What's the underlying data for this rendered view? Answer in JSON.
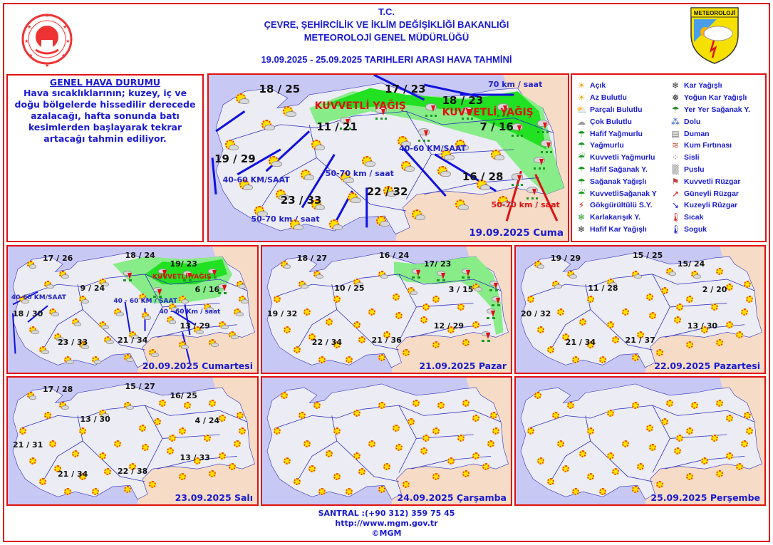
{
  "header": {
    "line1": "T.C.",
    "line2": "ÇEVRE, ŞEHİRCİLİK VE İKLİM DEĞİŞİKLİĞİ BAKANLIĞI",
    "line3": "METEOROLOJİ  GENEL  MÜDÜRLÜĞÜ",
    "dates": "19.09.2025  -  25.09.2025   TARIHLERI  ARASI  HAVA  TAHMİNİ",
    "logo_right_text": "METEOROLOJİ"
  },
  "general": {
    "title": "GENEL HAVA DURUMU",
    "text": "Hava sıcaklıklarının; kuzey, iç ve doğu bölgelerde hissedilir derecede azalacağı, hafta sonunda batı kesimlerden başlayarak tekrar artacağı tahmin ediliyor."
  },
  "legend": [
    {
      "icon": "sun-icon",
      "label": "Açık"
    },
    {
      "icon": "few-clouds-icon",
      "label": "Az Bulutlu"
    },
    {
      "icon": "partly-cloudy-icon",
      "label": "Parçalı Bulutlu"
    },
    {
      "icon": "cloudy-icon",
      "label": "Çok Bulutlu"
    },
    {
      "icon": "light-rain-icon",
      "label": "Hafif Yağmurlu"
    },
    {
      "icon": "rain-icon",
      "label": "Yağmurlu"
    },
    {
      "icon": "heavy-rain-icon",
      "label": "Kuvvetli Yağmurlu"
    },
    {
      "icon": "light-shower-icon",
      "label": "Hafif Sağanak Y."
    },
    {
      "icon": "shower-icon",
      "label": "Sağanak Yağışlı"
    },
    {
      "icon": "heavy-shower-icon",
      "label": "KuvvetliSağanak Y"
    },
    {
      "icon": "thunderstorm-icon",
      "label": "Gökgürültülü S.Y."
    },
    {
      "icon": "sleet-icon",
      "label": "Karlakarışık Y."
    },
    {
      "icon": "light-snow-icon",
      "label": "Hafif Kar Yağışlı"
    },
    {
      "icon": "snow-icon",
      "label": "Kar Yağışlı"
    },
    {
      "icon": "heavy-snow-icon",
      "label": "Yoğun Kar Yağışlı"
    },
    {
      "icon": "local-shower-icon",
      "label": "Yer Yer Sağanak Y."
    },
    {
      "icon": "hail-icon",
      "label": "Dolu"
    },
    {
      "icon": "smoke-icon",
      "label": "Duman"
    },
    {
      "icon": "sandstorm-icon",
      "label": "Kum Fırtınası"
    },
    {
      "icon": "fog-icon",
      "label": "Sisli"
    },
    {
      "icon": "haze-icon",
      "label": "Puslu"
    },
    {
      "icon": "strong-wind-icon",
      "label": "Kuvvetli Rüzgar"
    },
    {
      "icon": "south-wind-arrow-icon",
      "label": "Güneyli Rüzgar"
    },
    {
      "icon": "north-wind-arrow-icon",
      "label": "Kuzeyli Rüzgar"
    },
    {
      "icon": "hot-thermometer-icon",
      "label": "Sıcak"
    },
    {
      "icon": "cold-thermometer-icon",
      "label": "Soguk"
    }
  ],
  "colors": {
    "border": "#e01010",
    "text": "#1a1ad0",
    "sea": "#c8c8f4",
    "land": "#ececf4",
    "neighbors": "#f6dcc6",
    "heavy_rain_zone": "#22e022",
    "rain_zone": "#88ec88"
  },
  "maps": [
    {
      "date": "19.09.2025 Cuma",
      "temps": [
        "18 / 25",
        "17 / 23",
        "18 / 23",
        "11 / 21",
        "7 / 16",
        "19 / 29",
        "16 / 28",
        "23 / 33",
        "22 / 32"
      ],
      "winds": [
        "70 km / saat",
        "40-60 KM/SAAT",
        "50-70 km / saat",
        "50-70 km / saat",
        "40-60 KM/SAAT",
        "50-70 km / saat"
      ],
      "warnings": [
        "KUVVETLİ YAĞIŞ",
        "KUVVETLİ YAĞIŞ"
      ]
    },
    {
      "date": "20.09.2025 Cumartesi",
      "temps": [
        "17 / 26",
        "18 / 24",
        "19/ 23",
        "9 / 24",
        "6 / 16",
        "18 / 30",
        "13 / 29",
        "23 / 33",
        "21 / 34"
      ],
      "winds": [
        "40-60 KM/SAAT",
        "40 - 60 KM / SAAT",
        "40 - 60 Km / saat"
      ],
      "warnings": [
        "KUVVETLİ YAĞIŞ"
      ]
    },
    {
      "date": "21.09.2025 Pazar",
      "temps": [
        "18 / 27",
        "16 / 24",
        "17/ 23",
        "10 / 25",
        "3 / 15",
        "19 / 32",
        "12 / 29",
        "22 / 34",
        "21 / 36"
      ]
    },
    {
      "date": "22.09.2025 Pazartesi",
      "temps": [
        "19 / 29",
        "15 / 25",
        "15/ 24",
        "11 / 28",
        "2 / 20",
        "20 / 32",
        "13 / 30",
        "21 / 34",
        "21 / 37"
      ]
    },
    {
      "date": "23.09.2025 Salı",
      "temps": [
        "17 / 28",
        "15 / 27",
        "16/ 25",
        "13 / 30",
        "4 / 24",
        "21 / 31",
        "13 / 33",
        "21 / 34",
        "22 / 38"
      ]
    },
    {
      "date": "24.09.2025 Çarşamba",
      "temps": []
    },
    {
      "date": "25.09.2025 Perşembe",
      "temps": []
    }
  ],
  "footer": {
    "phone": "SANTRAL :(+90 312) 359 75 45",
    "url": "http://www.mgm.gov.tr",
    "copyright": "©MGM"
  }
}
